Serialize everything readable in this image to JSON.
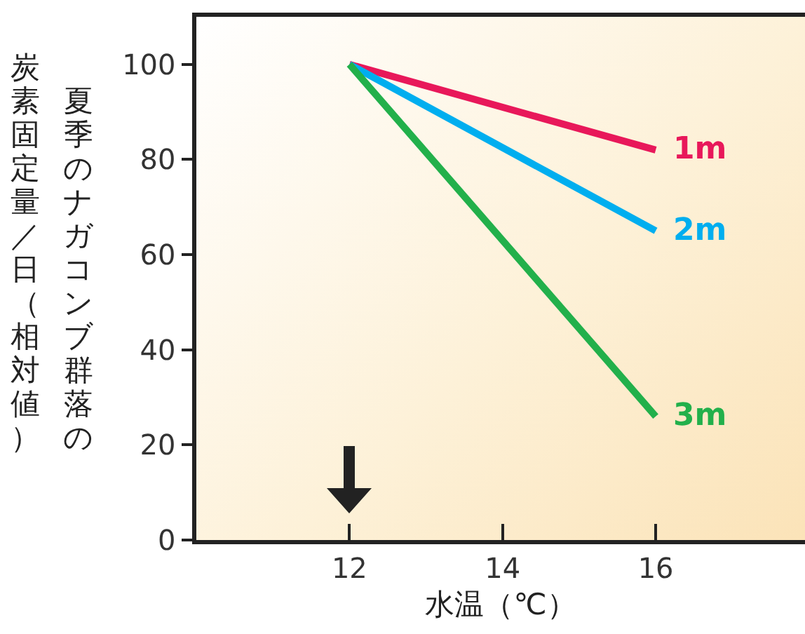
{
  "chart_data": {
    "type": "line",
    "xlabel": "水温（℃）",
    "ylabel": "夏季のナガコンブ群落の炭素固定量／日（相対値）",
    "x": [
      12,
      16
    ],
    "series": [
      {
        "name": "1m",
        "color": "#e8185a",
        "values": [
          100,
          82
        ]
      },
      {
        "name": "2m",
        "color": "#00aeef",
        "values": [
          100,
          65
        ]
      },
      {
        "name": "3m",
        "color": "#22b04b",
        "values": [
          100,
          26
        ]
      }
    ],
    "xlim": [
      10,
      17.95
    ],
    "xticks": [
      12,
      14,
      16
    ],
    "ylim": [
      0,
      110
    ],
    "yticks": [
      0,
      20,
      40,
      60,
      80,
      100
    ],
    "grid": false,
    "legend": false,
    "marker": "none",
    "line_style": "solid"
  }
}
